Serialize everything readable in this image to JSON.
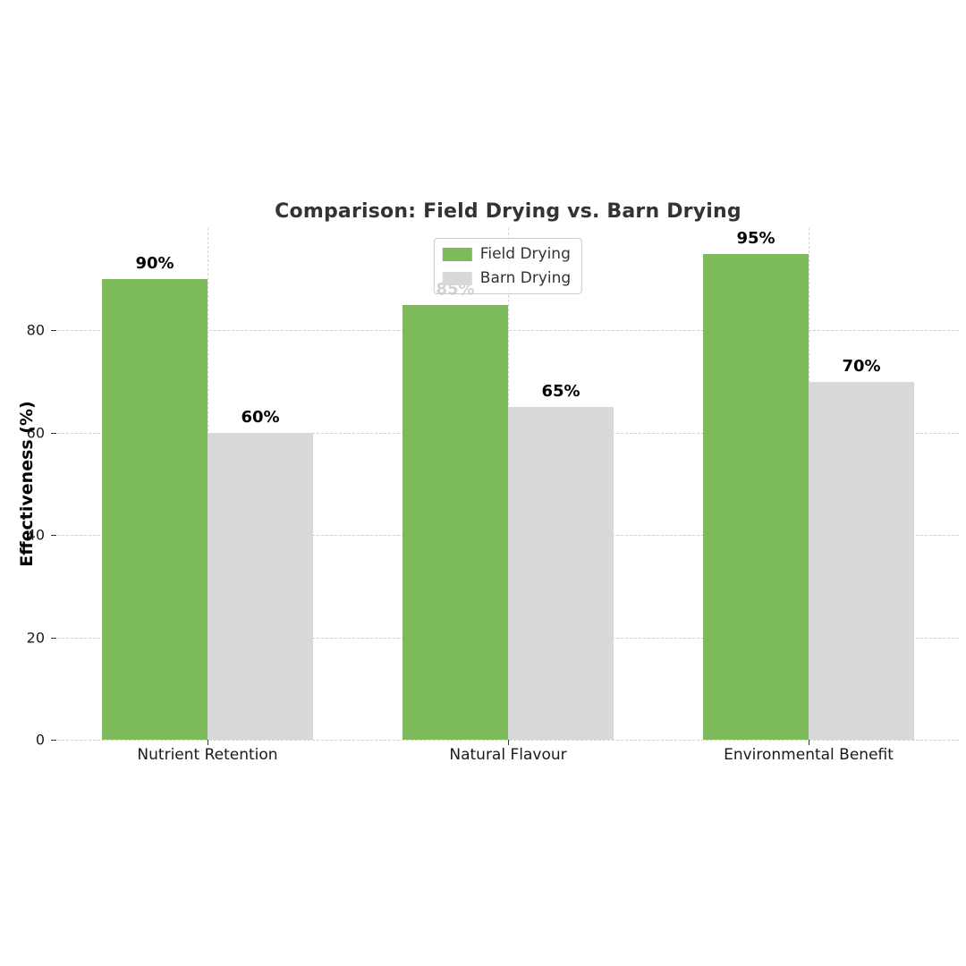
{
  "chart_data": {
    "type": "bar",
    "title": "Comparison: Field Drying vs. Barn Drying",
    "categories": [
      "Nutrient Retention",
      "Natural Flavour",
      "Environmental Benefit"
    ],
    "series": [
      {
        "name": "Field Drying",
        "values": [
          90,
          85,
          95
        ],
        "color": "#7cba5c"
      },
      {
        "name": "Barn Drying",
        "values": [
          60,
          65,
          70
        ],
        "color": "#d8d8d8"
      }
    ],
    "bar_labels": [
      [
        "90%",
        "85%",
        "95%"
      ],
      [
        "60%",
        "65%",
        "70%"
      ]
    ],
    "xlabel": "",
    "ylabel": "Effectiveness (%)",
    "ylim": [
      0,
      100
    ],
    "yticks": [
      "0",
      "20",
      "40",
      "60",
      "80"
    ],
    "ytick_values": [
      0,
      20,
      40,
      60,
      80
    ],
    "grid": true,
    "grid_style": "dashed",
    "legend_position": "upper center",
    "legend_entries": [
      "Field Drying",
      "Barn Drying"
    ]
  }
}
